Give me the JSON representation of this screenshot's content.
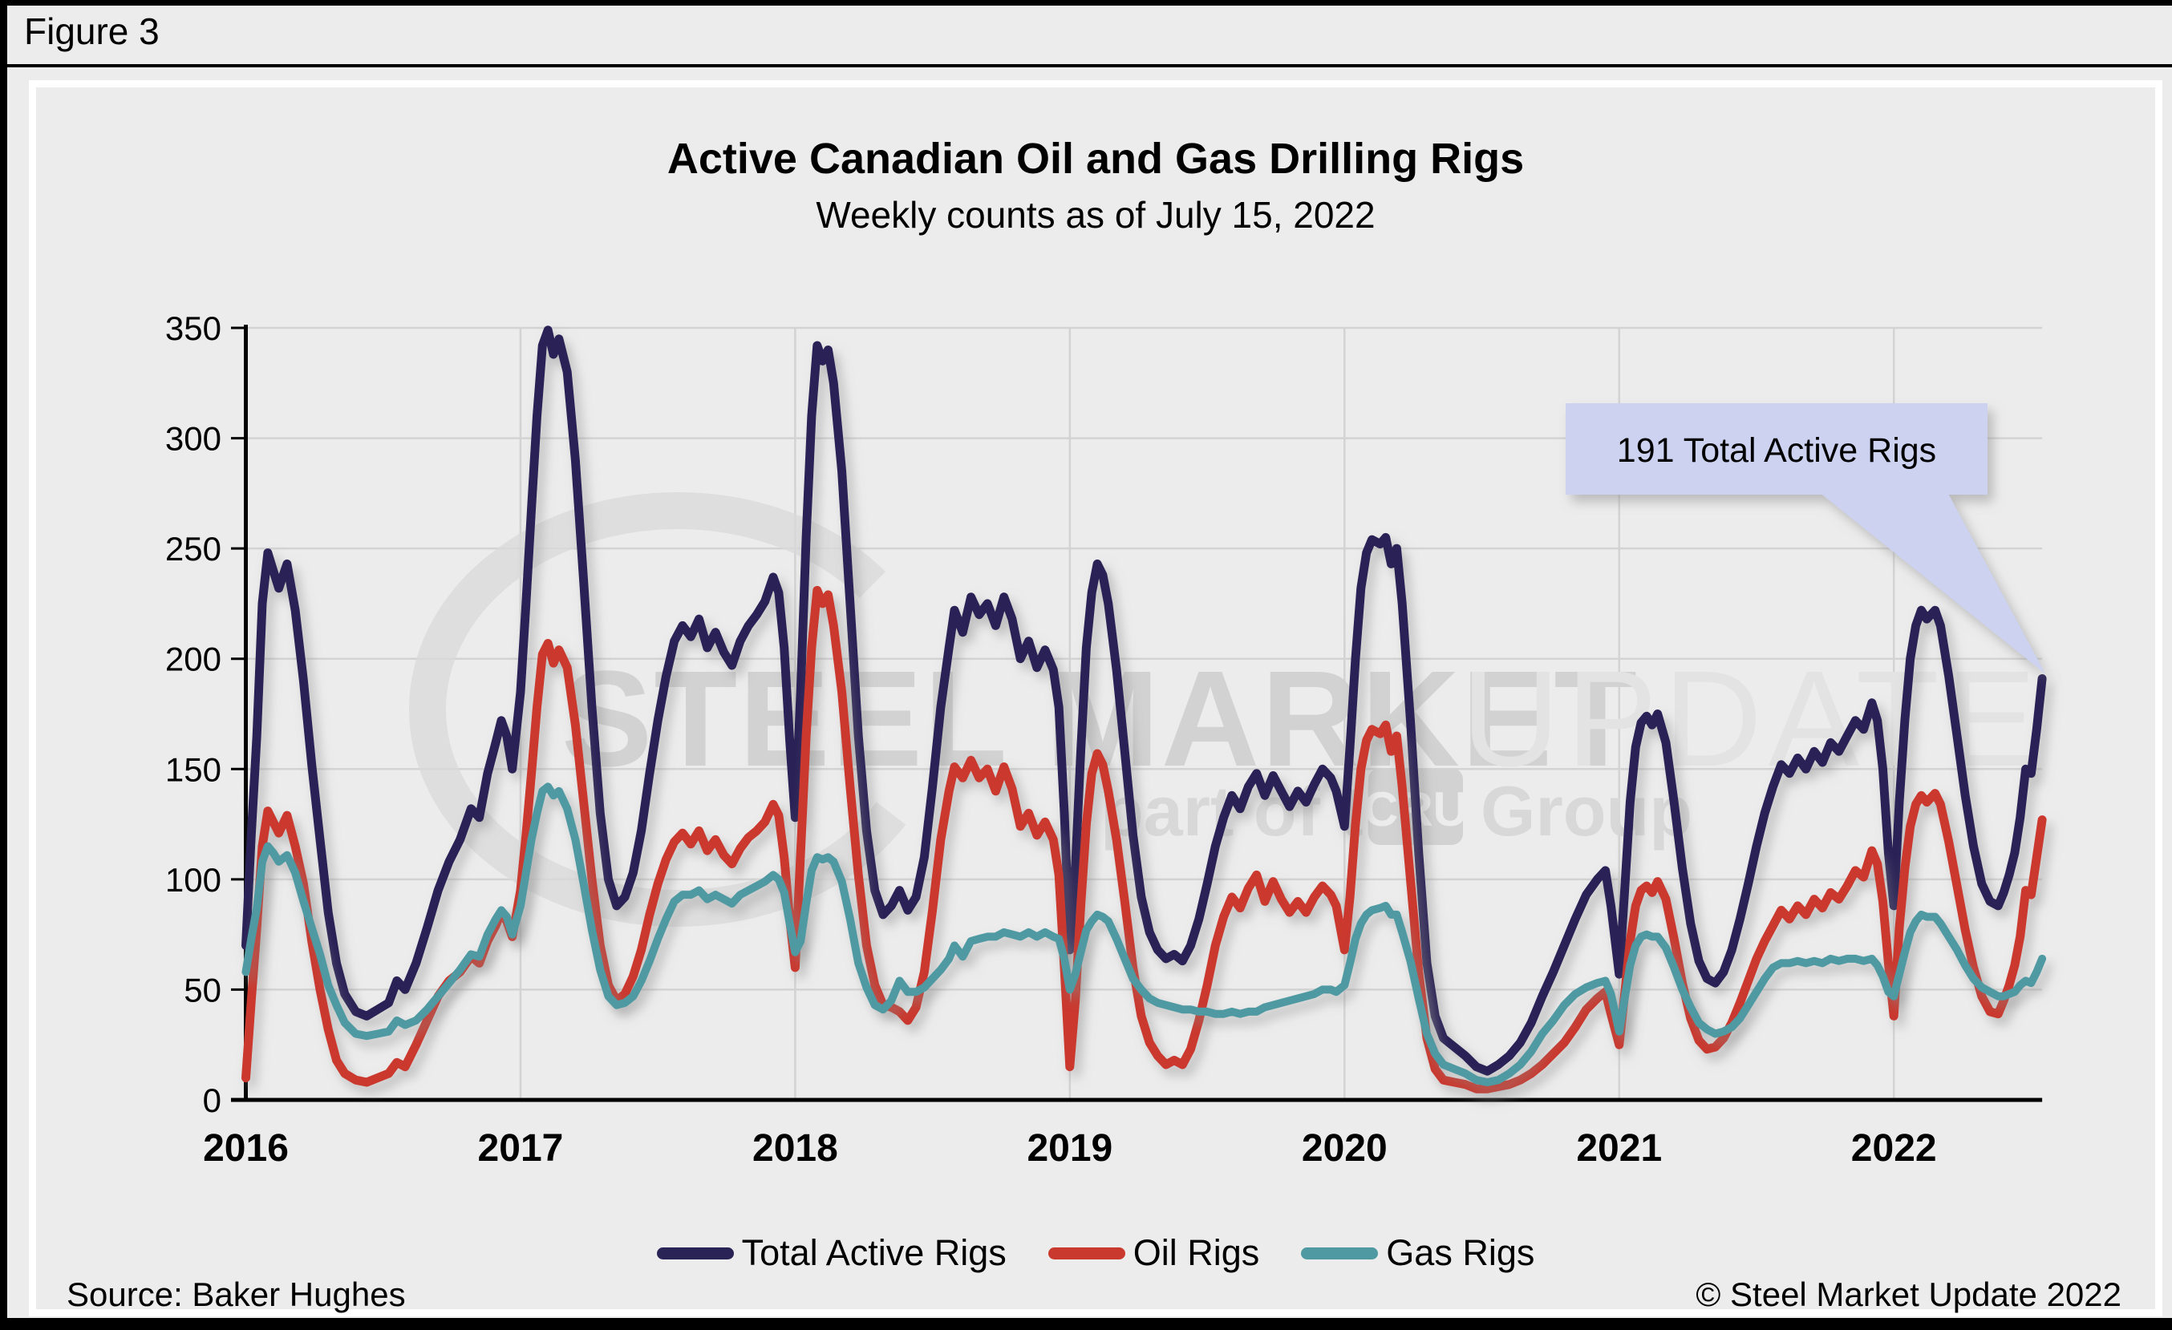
{
  "figure_label": "Figure 3",
  "title": "Active Canadian Oil and Gas Drilling Rigs",
  "subtitle": "Weekly counts as of July 15, 2022",
  "footer": {
    "source": "Source: Baker Hughes",
    "copyright": "© Steel Market Update 2022"
  },
  "colors": {
    "total": "#2a2356",
    "oil": "#ca392d",
    "gas": "#4f9aa2",
    "grid": "#d3d3d3",
    "axis": "#000000",
    "background": "#ececec",
    "panel_border": "#ffffff",
    "callout_fill": "#ccd2f0",
    "watermark_strong": "#d2d2d2",
    "watermark_light": "#e3e3e3"
  },
  "legend": [
    {
      "label": "Total Active Rigs",
      "color": "#2a2356"
    },
    {
      "label": "Oil Rigs",
      "color": "#ca392d"
    },
    {
      "label": "Gas Rigs",
      "color": "#4f9aa2"
    }
  ],
  "watermark": {
    "line1_strong": "STEEL MARKET",
    "line1_light": "UPDATE",
    "line2_pre": "part of the",
    "line2_box": "CRU",
    "line2_post": "Group"
  },
  "chart_data": {
    "type": "line",
    "title": "Active Canadian Oil and Gas Drilling Rigs",
    "subtitle": "Weekly counts as of July 15, 2022",
    "xlabel": "",
    "ylabel": "",
    "ylim": [
      0,
      350
    ],
    "y_ticks": [
      0,
      50,
      100,
      150,
      200,
      250,
      300,
      350
    ],
    "x_ticks": [
      2016,
      2017,
      2018,
      2019,
      2020,
      2021,
      2022
    ],
    "grid": true,
    "legend_position": "bottom",
    "annotation": {
      "text": "191 Total Active Rigs",
      "x": 2022.54,
      "y": 191
    },
    "x": [
      2016.0,
      2016.02,
      2016.04,
      2016.06,
      2016.08,
      2016.1,
      2016.12,
      2016.15,
      2016.18,
      2016.21,
      2016.24,
      2016.27,
      2016.3,
      2016.33,
      2016.36,
      2016.4,
      2016.44,
      2016.48,
      2016.52,
      2016.55,
      2016.58,
      2016.62,
      2016.66,
      2016.7,
      2016.74,
      2016.78,
      2016.82,
      2016.85,
      2016.88,
      2016.91,
      2016.93,
      2016.95,
      2016.97,
      2017.0,
      2017.02,
      2017.04,
      2017.06,
      2017.08,
      2017.1,
      2017.12,
      2017.14,
      2017.17,
      2017.2,
      2017.23,
      2017.26,
      2017.29,
      2017.32,
      2017.35,
      2017.38,
      2017.41,
      2017.44,
      2017.47,
      2017.5,
      2017.53,
      2017.56,
      2017.59,
      2017.62,
      2017.65,
      2017.68,
      2017.71,
      2017.74,
      2017.77,
      2017.8,
      2017.83,
      2017.86,
      2017.89,
      2017.92,
      2017.94,
      2017.96,
      2017.98,
      2018.0,
      2018.02,
      2018.04,
      2018.06,
      2018.08,
      2018.1,
      2018.12,
      2018.14,
      2018.17,
      2018.2,
      2018.23,
      2018.26,
      2018.29,
      2018.32,
      2018.35,
      2018.38,
      2018.41,
      2018.44,
      2018.47,
      2018.5,
      2018.53,
      2018.56,
      2018.58,
      2018.61,
      2018.64,
      2018.67,
      2018.7,
      2018.73,
      2018.76,
      2018.79,
      2018.82,
      2018.85,
      2018.88,
      2018.91,
      2018.94,
      2018.96,
      2018.98,
      2019.0,
      2019.02,
      2019.04,
      2019.06,
      2019.08,
      2019.1,
      2019.12,
      2019.14,
      2019.17,
      2019.2,
      2019.23,
      2019.26,
      2019.29,
      2019.32,
      2019.35,
      2019.38,
      2019.41,
      2019.44,
      2019.47,
      2019.5,
      2019.53,
      2019.56,
      2019.59,
      2019.62,
      2019.65,
      2019.68,
      2019.71,
      2019.74,
      2019.77,
      2019.8,
      2019.83,
      2019.86,
      2019.89,
      2019.92,
      2019.95,
      2019.97,
      2020.0,
      2020.02,
      2020.04,
      2020.06,
      2020.08,
      2020.1,
      2020.13,
      2020.15,
      2020.17,
      2020.19,
      2020.21,
      2020.24,
      2020.27,
      2020.3,
      2020.33,
      2020.36,
      2020.4,
      2020.44,
      2020.48,
      2020.52,
      2020.56,
      2020.6,
      2020.64,
      2020.68,
      2020.72,
      2020.76,
      2020.8,
      2020.84,
      2020.88,
      2020.92,
      2020.95,
      2020.97,
      2021.0,
      2021.02,
      2021.04,
      2021.06,
      2021.08,
      2021.1,
      2021.12,
      2021.14,
      2021.17,
      2021.2,
      2021.23,
      2021.26,
      2021.29,
      2021.32,
      2021.35,
      2021.38,
      2021.41,
      2021.44,
      2021.47,
      2021.5,
      2021.53,
      2021.56,
      2021.59,
      2021.62,
      2021.65,
      2021.68,
      2021.71,
      2021.74,
      2021.77,
      2021.8,
      2021.83,
      2021.86,
      2021.89,
      2021.92,
      2021.94,
      2021.96,
      2021.98,
      2022.0,
      2022.02,
      2022.04,
      2022.06,
      2022.08,
      2022.1,
      2022.12,
      2022.15,
      2022.17,
      2022.2,
      2022.23,
      2022.26,
      2022.29,
      2022.32,
      2022.35,
      2022.38,
      2022.4,
      2022.42,
      2022.44,
      2022.46,
      2022.48,
      2022.5,
      2022.52,
      2022.54
    ],
    "series": [
      {
        "name": "Total Active Rigs",
        "color": "#2a2356",
        "values": [
          70,
          120,
          165,
          225,
          248,
          240,
          232,
          243,
          222,
          190,
          152,
          118,
          85,
          62,
          48,
          40,
          38,
          41,
          44,
          54,
          50,
          62,
          78,
          95,
          108,
          118,
          132,
          128,
          148,
          162,
          172,
          165,
          150,
          185,
          225,
          268,
          310,
          342,
          349,
          338,
          345,
          330,
          290,
          235,
          178,
          130,
          100,
          88,
          92,
          103,
          122,
          148,
          172,
          192,
          208,
          215,
          210,
          218,
          205,
          212,
          203,
          197,
          208,
          215,
          220,
          226,
          237,
          230,
          205,
          163,
          128,
          185,
          255,
          310,
          342,
          335,
          340,
          325,
          285,
          225,
          165,
          122,
          95,
          84,
          88,
          95,
          86,
          92,
          110,
          142,
          178,
          205,
          222,
          212,
          228,
          220,
          225,
          215,
          228,
          218,
          200,
          208,
          196,
          204,
          195,
          178,
          130,
          68,
          105,
          158,
          205,
          230,
          243,
          238,
          225,
          195,
          158,
          120,
          92,
          76,
          68,
          64,
          66,
          63,
          70,
          82,
          98,
          115,
          128,
          138,
          132,
          142,
          148,
          138,
          147,
          140,
          133,
          140,
          135,
          143,
          150,
          146,
          140,
          124,
          160,
          200,
          232,
          248,
          254,
          252,
          255,
          243,
          250,
          225,
          172,
          112,
          62,
          38,
          28,
          24,
          20,
          15,
          13,
          16,
          20,
          26,
          35,
          47,
          58,
          70,
          82,
          93,
          100,
          104,
          88,
          57,
          95,
          135,
          160,
          171,
          174,
          170,
          175,
          162,
          135,
          105,
          80,
          63,
          55,
          53,
          58,
          68,
          82,
          98,
          115,
          130,
          142,
          152,
          148,
          155,
          150,
          158,
          153,
          162,
          158,
          165,
          172,
          168,
          180,
          172,
          150,
          112,
          88,
          135,
          172,
          200,
          215,
          222,
          218,
          222,
          215,
          192,
          165,
          138,
          115,
          98,
          90,
          88,
          94,
          102,
          112,
          128,
          150,
          148,
          168,
          191
        ]
      },
      {
        "name": "Oil Rigs",
        "color": "#ca392d",
        "values": [
          10,
          45,
          78,
          115,
          131,
          126,
          121,
          129,
          115,
          98,
          72,
          50,
          32,
          18,
          12,
          9,
          8,
          10,
          12,
          17,
          15,
          25,
          36,
          47,
          54,
          58,
          65,
          62,
          72,
          79,
          85,
          81,
          74,
          95,
          120,
          148,
          178,
          202,
          207,
          198,
          204,
          196,
          170,
          135,
          100,
          70,
          52,
          45,
          48,
          56,
          68,
          84,
          98,
          109,
          117,
          121,
          116,
          122,
          113,
          118,
          111,
          107,
          114,
          119,
          122,
          126,
          134,
          129,
          110,
          82,
          60,
          112,
          165,
          205,
          231,
          225,
          229,
          215,
          185,
          142,
          102,
          70,
          52,
          43,
          42,
          40,
          36,
          42,
          58,
          86,
          118,
          140,
          151,
          146,
          154,
          146,
          150,
          140,
          151,
          141,
          124,
          130,
          120,
          126,
          118,
          102,
          60,
          15,
          45,
          88,
          125,
          148,
          157,
          152,
          140,
          118,
          90,
          60,
          38,
          26,
          20,
          16,
          18,
          16,
          23,
          36,
          52,
          70,
          83,
          92,
          87,
          96,
          102,
          90,
          99,
          91,
          85,
          90,
          85,
          92,
          97,
          93,
          88,
          68,
          92,
          125,
          150,
          163,
          168,
          166,
          170,
          158,
          165,
          142,
          100,
          58,
          28,
          14,
          9,
          8,
          7,
          5,
          5,
          6,
          7,
          9,
          12,
          16,
          21,
          26,
          33,
          41,
          46,
          49,
          39,
          25,
          48,
          72,
          88,
          95,
          97,
          94,
          99,
          91,
          73,
          53,
          37,
          27,
          23,
          24,
          28,
          35,
          44,
          54,
          64,
          72,
          79,
          86,
          82,
          88,
          84,
          91,
          87,
          94,
          91,
          97,
          104,
          101,
          113,
          107,
          90,
          62,
          38,
          78,
          105,
          124,
          134,
          138,
          135,
          139,
          134,
          117,
          97,
          77,
          60,
          47,
          40,
          39,
          45,
          52,
          61,
          74,
          95,
          93,
          110,
          127
        ]
      },
      {
        "name": "Gas Rigs",
        "color": "#4f9aa2",
        "values": [
          58,
          73,
          87,
          108,
          115,
          112,
          108,
          111,
          103,
          90,
          78,
          66,
          52,
          43,
          35,
          30,
          29,
          30,
          31,
          36,
          34,
          36,
          41,
          47,
          53,
          59,
          66,
          65,
          75,
          82,
          86,
          83,
          75,
          88,
          103,
          118,
          130,
          140,
          142,
          138,
          140,
          132,
          118,
          98,
          77,
          59,
          47,
          43,
          44,
          47,
          54,
          63,
          73,
          82,
          90,
          93,
          93,
          95,
          91,
          93,
          91,
          89,
          93,
          95,
          97,
          99,
          102,
          100,
          94,
          80,
          67,
          72,
          89,
          104,
          110,
          109,
          110,
          108,
          99,
          82,
          62,
          51,
          43,
          41,
          45,
          54,
          49,
          49,
          51,
          55,
          59,
          64,
          70,
          65,
          72,
          73,
          74,
          74,
          76,
          75,
          74,
          76,
          74,
          76,
          74,
          73,
          64,
          50,
          57,
          67,
          77,
          81,
          84,
          83,
          81,
          73,
          64,
          55,
          50,
          46,
          44,
          43,
          42,
          41,
          41,
          40,
          40,
          39,
          39,
          40,
          39,
          40,
          40,
          42,
          43,
          44,
          45,
          46,
          47,
          48,
          50,
          50,
          49,
          52,
          62,
          73,
          80,
          84,
          86,
          87,
          88,
          84,
          84,
          76,
          63,
          46,
          30,
          21,
          16,
          14,
          12,
          9,
          8,
          9,
          12,
          16,
          22,
          30,
          36,
          43,
          48,
          51,
          53,
          54,
          48,
          31,
          46,
          61,
          70,
          74,
          75,
          74,
          74,
          69,
          60,
          50,
          42,
          35,
          32,
          30,
          31,
          33,
          37,
          43,
          49,
          55,
          60,
          62,
          62,
          63,
          62,
          63,
          62,
          64,
          63,
          64,
          64,
          63,
          64,
          61,
          56,
          49,
          47,
          57,
          67,
          76,
          81,
          84,
          83,
          83,
          80,
          74,
          68,
          61,
          55,
          51,
          49,
          47,
          47,
          48,
          49,
          52,
          54,
          53,
          58,
          64
        ]
      }
    ]
  }
}
